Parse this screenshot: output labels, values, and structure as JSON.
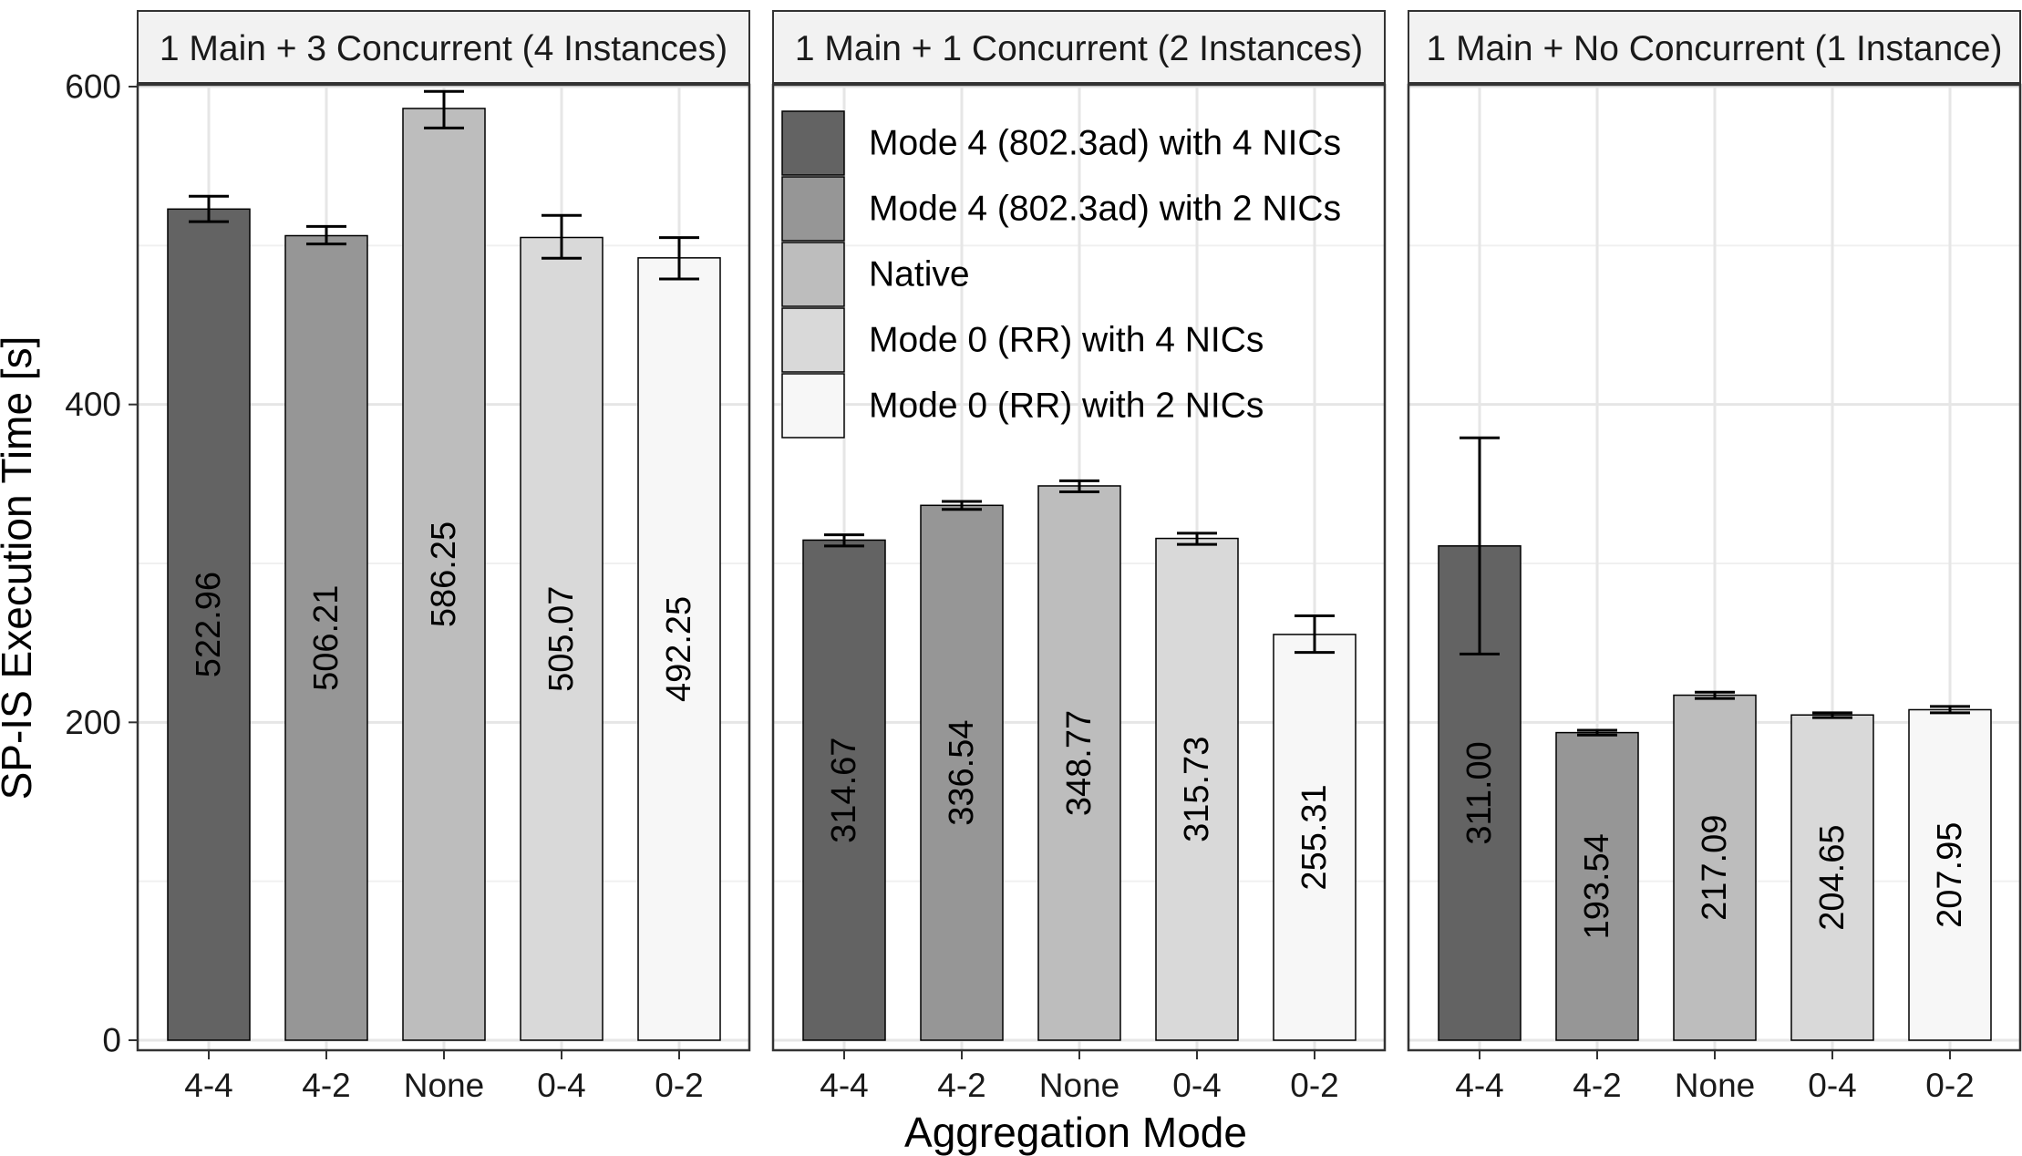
{
  "chart_data": {
    "type": "bar",
    "xlabel": "Aggregation Mode",
    "ylabel": "SP-IS Execution Time [s]",
    "ylim": [
      0,
      630
    ],
    "yticks": [
      0,
      200,
      400,
      600
    ],
    "grid": true,
    "legend_position": "top-left of middle panel",
    "categories": [
      "4-4",
      "4-2",
      "None",
      "0-4",
      "0-2"
    ],
    "legend": [
      {
        "label": "Mode 4 (802.3ad) with 4 NICs",
        "color": "#636363"
      },
      {
        "label": "Mode 4 (802.3ad) with 2 NICs",
        "color": "#969696"
      },
      {
        "label": "Native",
        "color": "#bdbdbd"
      },
      {
        "label": "Mode 0 (RR) with 4 NICs",
        "color": "#d9d9d9"
      },
      {
        "label": "Mode 0 (RR) with 2 NICs",
        "color": "#f7f7f7"
      }
    ],
    "panels": [
      {
        "title": "1 Main + 3 Concurrent (4 Instances)",
        "values": [
          522.96,
          506.21,
          586.25,
          505.07,
          492.25
        ],
        "labels": [
          "522.96",
          "506.21",
          "586.25",
          "505.07",
          "492.25"
        ],
        "error_low": [
          515,
          501,
          574,
          492,
          479
        ],
        "error_high": [
          531,
          512,
          597,
          519,
          505
        ]
      },
      {
        "title": "1 Main + 1 Concurrent (2 Instances)",
        "values": [
          314.67,
          336.54,
          348.77,
          315.73,
          255.31
        ],
        "labels": [
          "314.67",
          "336.54",
          "348.77",
          "315.73",
          "255.31"
        ],
        "error_low": [
          311,
          334,
          345,
          312,
          244
        ],
        "error_high": [
          318,
          339,
          352,
          319,
          267
        ]
      },
      {
        "title": "1 Main + No Concurrent (1 Instance)",
        "values": [
          311.0,
          193.54,
          217.09,
          204.65,
          207.95
        ],
        "labels": [
          "311.00",
          "193.54",
          "217.09",
          "204.65",
          "207.95"
        ],
        "error_low": [
          243,
          192,
          215,
          203,
          206
        ],
        "error_high": [
          379,
          195,
          219,
          206,
          210
        ]
      }
    ]
  }
}
